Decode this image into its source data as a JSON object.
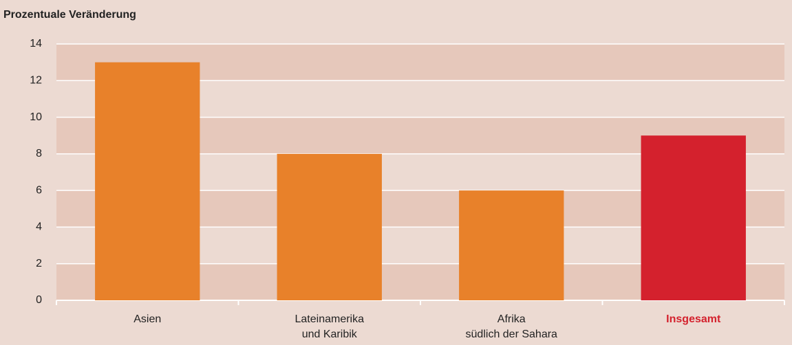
{
  "chart_data": {
    "type": "bar",
    "title": "Prozentuale Veränderung",
    "categories": [
      "Asien",
      "Lateinamerika\nund Karibik",
      "Afrika\nsüdlich der Sahara",
      "Insgesamt"
    ],
    "values": [
      13,
      8,
      6,
      9
    ],
    "colors": [
      "#e8812a",
      "#e8812a",
      "#e8812a",
      "#d4212d"
    ],
    "emphasized": [
      false,
      false,
      false,
      true
    ],
    "ylim": [
      0,
      14
    ],
    "yticks": [
      0,
      2,
      4,
      6,
      8,
      10,
      12,
      14
    ],
    "grid": true,
    "banded": true
  }
}
